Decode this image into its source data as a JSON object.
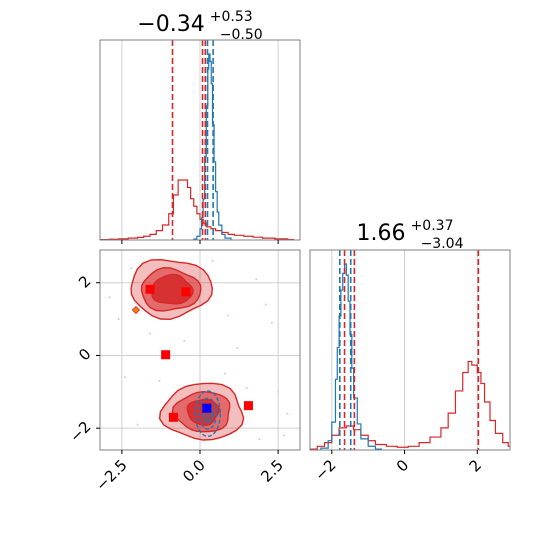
{
  "colors": {
    "red": "#d62728",
    "blue": "#1f77b4",
    "grid": "#d0d0d0",
    "frame": "#808080"
  },
  "chart_data": {
    "type": "corner",
    "panels": [
      {
        "name": "hist-param-1",
        "title": {
          "main": "−0.34",
          "sup": "+0.53",
          "sub": "−0.50"
        },
        "xlim": [
          -3.2,
          3.2
        ],
        "xticks": [
          -2.5,
          0.0,
          2.5
        ],
        "grid": true,
        "red_quantiles": [
          -0.88,
          0.08,
          0.17
        ],
        "blue_quantiles": [
          0.24,
          0.42
        ],
        "red_hist": [
          [
            -3.2,
            0.002
          ],
          [
            -2.9,
            0.004
          ],
          [
            -2.6,
            0.006
          ],
          [
            -2.3,
            0.01
          ],
          [
            -2.0,
            0.014
          ],
          [
            -1.8,
            0.02
          ],
          [
            -1.6,
            0.03
          ],
          [
            -1.4,
            0.05
          ],
          [
            -1.2,
            0.08
          ],
          [
            -1.0,
            0.14
          ],
          [
            -0.85,
            0.24
          ],
          [
            -0.7,
            0.32
          ],
          [
            -0.55,
            0.32
          ],
          [
            -0.4,
            0.28
          ],
          [
            -0.3,
            0.22
          ],
          [
            -0.2,
            0.18
          ],
          [
            -0.1,
            0.14
          ],
          [
            0.0,
            0.11
          ],
          [
            0.1,
            0.09
          ],
          [
            0.2,
            0.07
          ],
          [
            0.35,
            0.06
          ],
          [
            0.5,
            0.05
          ],
          [
            0.7,
            0.04
          ],
          [
            0.9,
            0.03
          ],
          [
            1.1,
            0.025
          ],
          [
            1.4,
            0.02
          ],
          [
            1.7,
            0.015
          ],
          [
            2.0,
            0.01
          ],
          [
            2.4,
            0.006
          ],
          [
            2.8,
            0.003
          ]
        ],
        "blue_hist": [
          [
            -0.2,
            0.005
          ],
          [
            -0.1,
            0.02
          ],
          [
            0.0,
            0.06
          ],
          [
            0.05,
            0.12
          ],
          [
            0.1,
            0.22
          ],
          [
            0.15,
            0.45
          ],
          [
            0.2,
            0.72
          ],
          [
            0.25,
            0.92
          ],
          [
            0.28,
            1.0
          ],
          [
            0.32,
            0.96
          ],
          [
            0.36,
            0.84
          ],
          [
            0.4,
            0.62
          ],
          [
            0.45,
            0.42
          ],
          [
            0.5,
            0.26
          ],
          [
            0.55,
            0.15
          ],
          [
            0.6,
            0.08
          ],
          [
            0.7,
            0.03
          ],
          [
            0.8,
            0.01
          ]
        ]
      },
      {
        "name": "hist-param-2",
        "title": {
          "main": "1.66",
          "sup": "+0.37",
          "sub": "−3.04"
        },
        "xlim": [
          -2.6,
          2.9
        ],
        "xticks": [
          -2,
          0,
          2
        ],
        "grid": true,
        "red_quantiles": [
          -1.38,
          -1.65,
          2.03
        ],
        "blue_quantiles": [
          -1.78,
          -1.48
        ],
        "red_hist": [
          [
            -2.6,
            0.005
          ],
          [
            -2.4,
            0.02
          ],
          [
            -2.2,
            0.04
          ],
          [
            -2.0,
            0.08
          ],
          [
            -1.8,
            0.12
          ],
          [
            -1.6,
            0.13
          ],
          [
            -1.4,
            0.11
          ],
          [
            -1.2,
            0.08
          ],
          [
            -1.0,
            0.05
          ],
          [
            -0.8,
            0.03
          ],
          [
            -0.5,
            0.02
          ],
          [
            -0.2,
            0.015
          ],
          [
            0.1,
            0.02
          ],
          [
            0.4,
            0.04
          ],
          [
            0.7,
            0.07
          ],
          [
            1.0,
            0.12
          ],
          [
            1.2,
            0.2
          ],
          [
            1.4,
            0.32
          ],
          [
            1.6,
            0.42
          ],
          [
            1.75,
            0.48
          ],
          [
            1.85,
            0.46
          ],
          [
            2.0,
            0.42
          ],
          [
            2.1,
            0.36
          ],
          [
            2.2,
            0.26
          ],
          [
            2.35,
            0.16
          ],
          [
            2.5,
            0.09
          ],
          [
            2.7,
            0.04
          ],
          [
            2.85,
            0.02
          ]
        ],
        "blue_hist": [
          [
            -2.3,
            0.01
          ],
          [
            -2.1,
            0.05
          ],
          [
            -2.0,
            0.15
          ],
          [
            -1.9,
            0.38
          ],
          [
            -1.85,
            0.55
          ],
          [
            -1.8,
            0.72
          ],
          [
            -1.75,
            0.86
          ],
          [
            -1.7,
            0.95
          ],
          [
            -1.65,
            1.0
          ],
          [
            -1.6,
            0.94
          ],
          [
            -1.55,
            0.8
          ],
          [
            -1.5,
            0.62
          ],
          [
            -1.45,
            0.44
          ],
          [
            -1.4,
            0.28
          ],
          [
            -1.3,
            0.14
          ],
          [
            -1.2,
            0.06
          ],
          [
            -1.0,
            0.02
          ],
          [
            -0.8,
            0.005
          ]
        ]
      },
      {
        "name": "2d-param-1-vs-param-2",
        "xlim": [
          -3.2,
          3.2
        ],
        "ylim": [
          -2.6,
          2.9
        ],
        "xticks": [
          -2.5,
          0.0,
          2.5
        ],
        "yticks": [
          -2,
          0,
          2
        ],
        "grid": true,
        "red_contours": [
          {
            "level": "outer",
            "cx": -0.95,
            "cy": 1.85,
            "rx": 2.6,
            "ry": 1.6
          },
          {
            "level": "middle",
            "cx": -0.95,
            "cy": 1.8,
            "rx": 1.9,
            "ry": 1.15
          },
          {
            "level": "inner",
            "cx": -0.9,
            "cy": 1.8,
            "rx": 1.3,
            "ry": 0.8
          },
          {
            "level": "outer",
            "cx": 0.1,
            "cy": -1.55,
            "rx": 2.6,
            "ry": 1.55
          },
          {
            "level": "middle",
            "cx": 0.1,
            "cy": -1.55,
            "rx": 1.8,
            "ry": 1.1
          },
          {
            "level": "inner",
            "cx": 0.1,
            "cy": -1.55,
            "rx": 1.0,
            "ry": 0.7
          }
        ],
        "blue_contours": [
          {
            "cx": 0.25,
            "cy": -1.6,
            "rx": 0.8,
            "ry": 1.25
          },
          {
            "cx": 0.25,
            "cy": -1.6,
            "rx": 0.55,
            "ry": 0.85
          },
          {
            "cx": 0.25,
            "cy": -1.6,
            "rx": 0.32,
            "ry": 0.5
          }
        ],
        "red_markers": [
          [
            -1.6,
            1.82
          ],
          [
            -0.45,
            1.75
          ],
          [
            -1.1,
            0.02
          ],
          [
            -0.85,
            -1.7
          ],
          [
            1.55,
            -1.38
          ],
          [
            0.2,
            -1.45
          ]
        ],
        "blue_markers": [
          [
            0.22,
            -1.45
          ]
        ],
        "orange_markers": [
          [
            -2.05,
            1.25
          ]
        ]
      }
    ]
  }
}
